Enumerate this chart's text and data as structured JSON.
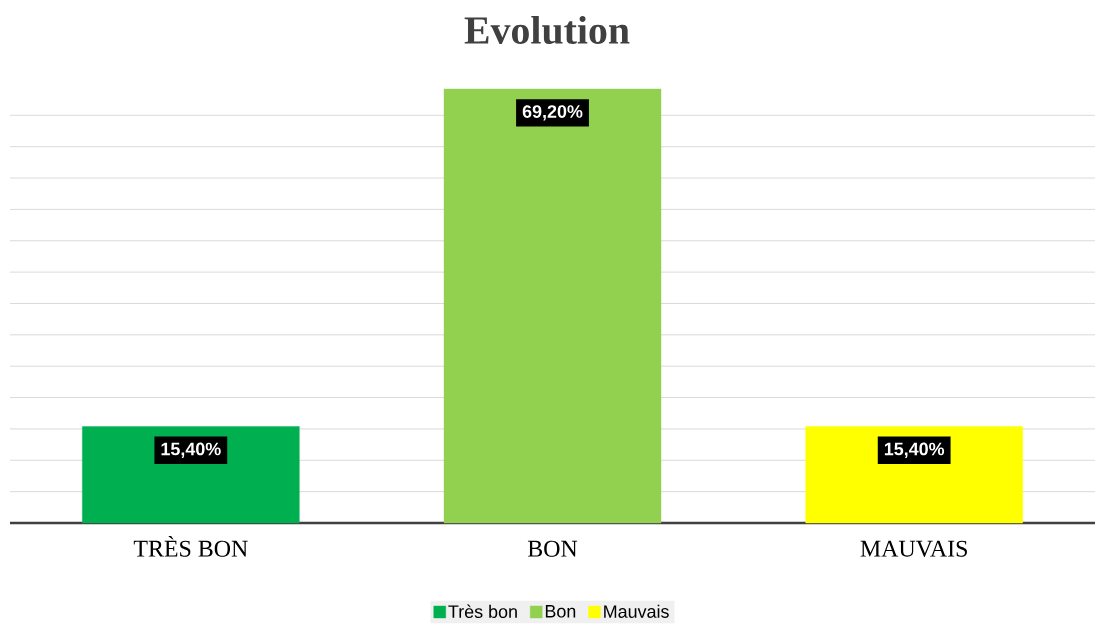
{
  "chart_data": {
    "type": "bar",
    "title": "Evolution",
    "categories": [
      "TRÈS BON",
      "BON",
      "MAUVAIS"
    ],
    "series": [
      {
        "name": "Très bon",
        "color": "#00b050",
        "values": [
          15.4,
          null,
          null
        ],
        "value_labels": [
          "15,40%",
          null,
          null
        ]
      },
      {
        "name": "Bon",
        "color": "#92d050",
        "values": [
          null,
          69.2,
          null
        ],
        "value_labels": [
          null,
          "69,20%",
          null
        ]
      },
      {
        "name": "Mauvais",
        "color": "#ffff00",
        "values": [
          null,
          null,
          15.4
        ],
        "value_labels": [
          null,
          null,
          "15,40%"
        ]
      }
    ],
    "tick_labels": "x",
    "grid": "y",
    "legend": "bottom"
  }
}
